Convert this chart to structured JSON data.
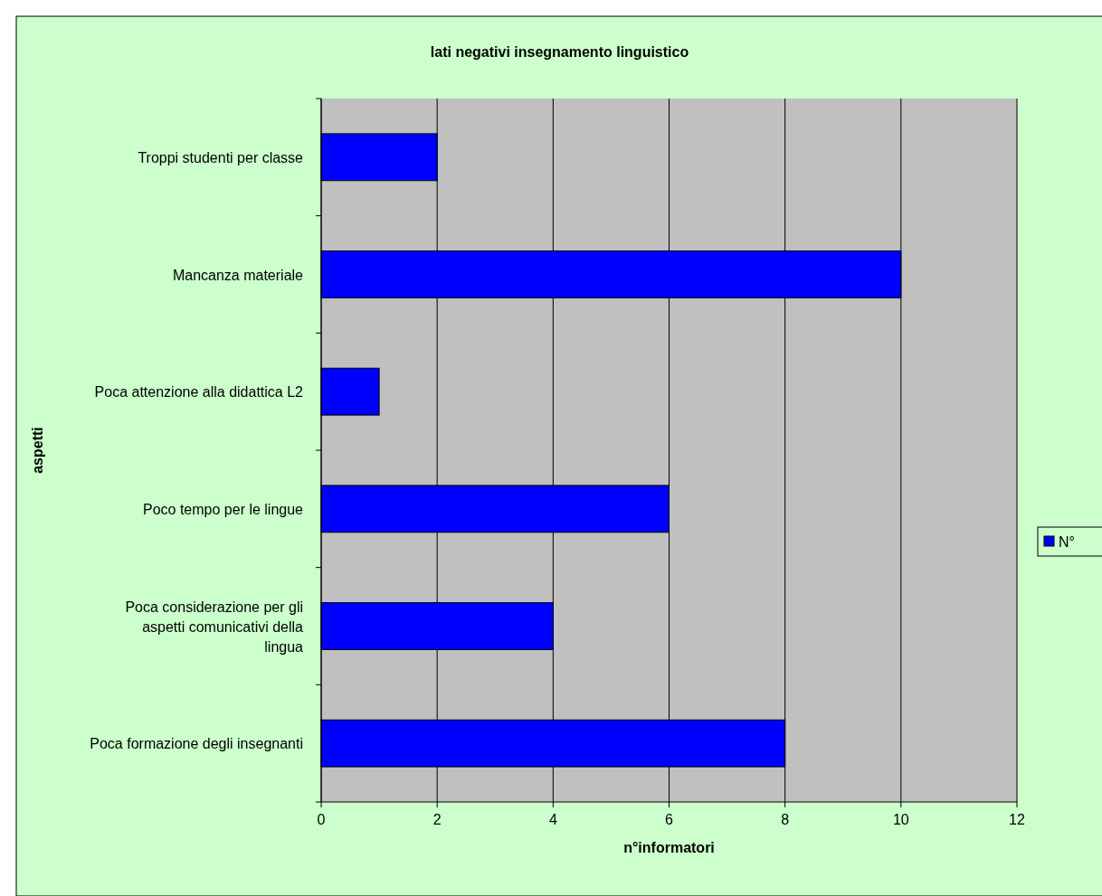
{
  "chart_data": {
    "type": "bar",
    "orientation": "horizontal",
    "title": "lati negativi insegnamento linguistico",
    "xlabel": "n°informatori",
    "ylabel": "aspetti",
    "categories": [
      "Troppi studenti per classe",
      "Mancanza materiale",
      "Poca attenzione alla didattica L2",
      "Poco tempo per le lingue",
      "Poca considerazione per gli aspetti comunicativi della lingua",
      "Poca formazione degli insegnanti"
    ],
    "series": [
      {
        "name": "N°",
        "color": "#0000ff",
        "values": [
          2,
          10,
          1,
          6,
          4,
          8
        ]
      }
    ],
    "xlim": [
      0,
      12
    ],
    "xticks": [
      0,
      2,
      4,
      6,
      8,
      10,
      12
    ],
    "grid": "x",
    "legend": "right"
  }
}
